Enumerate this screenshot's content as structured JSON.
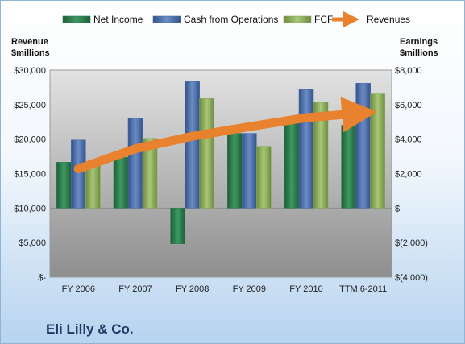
{
  "chart_data": {
    "type": "bar",
    "categories": [
      "FY 2006",
      "FY 2007",
      "FY 2008",
      "FY 2009",
      "FY 2010",
      "TTM 6-2011"
    ],
    "left_axis": {
      "label_line1": "Revenue",
      "label_line2": "$millions",
      "ylim": [
        0,
        30000
      ],
      "ticks": [
        0,
        5000,
        10000,
        15000,
        20000,
        25000,
        30000
      ],
      "tick_labels": [
        "$-",
        "$5,000",
        "$10,000",
        "$15,000",
        "$20,000",
        "$25,000",
        "$30,000"
      ]
    },
    "right_axis": {
      "label_line1": "Earnings",
      "label_line2": "$millions",
      "ylim": [
        -4000,
        8000
      ],
      "ticks": [
        -4000,
        -2000,
        0,
        2000,
        4000,
        6000,
        8000
      ],
      "tick_labels": [
        "$(4,000)",
        "$(2,000)",
        "$-",
        "$2,000",
        "$4,000",
        "$6,000",
        "$8,000"
      ]
    },
    "series": [
      {
        "name": "Net Income",
        "axis": "right",
        "color": "#2e7d4f",
        "values": [
          2660,
          2950,
          -2070,
          4330,
          5070,
          4800
        ]
      },
      {
        "name": "Cash from Operations",
        "axis": "right",
        "color": "#4f6fa8",
        "values": [
          3950,
          5200,
          7340,
          4330,
          6870,
          7240
        ]
      },
      {
        "name": "FCF",
        "axis": "right",
        "color": "#8cab5c",
        "values": [
          2600,
          4040,
          6350,
          3580,
          6130,
          6620
        ]
      },
      {
        "name": "Revenues",
        "axis": "left",
        "type": "line",
        "color": "#e9822e",
        "values": [
          15700,
          18600,
          20400,
          21800,
          23100,
          23800
        ]
      }
    ],
    "grid": false,
    "legend_position": "top"
  },
  "brand_title": "Eli Lilly & Co."
}
